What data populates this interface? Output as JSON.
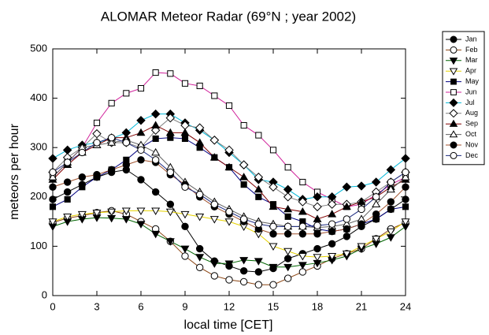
{
  "chart_data": {
    "type": "line",
    "title": "ALOMAR Meteor Radar (69°N ; year 2002)",
    "x_label": "local time [CET]",
    "y_label": "meteors per hour",
    "x": [
      0,
      1,
      2,
      3,
      4,
      5,
      6,
      7,
      8,
      9,
      10,
      11,
      12,
      13,
      14,
      15,
      16,
      17,
      18,
      19,
      20,
      21,
      22,
      23,
      24
    ],
    "xlim": [
      0,
      24
    ],
    "xticks": [
      0,
      3,
      6,
      9,
      12,
      15,
      18,
      21,
      24
    ],
    "ylim": [
      0,
      500
    ],
    "yticks": [
      0,
      100,
      200,
      300,
      400,
      500
    ],
    "marker_color": "#000000",
    "legend": "outside-top-right",
    "series": [
      {
        "name": "Jan",
        "color": "#000000",
        "marker": "circle",
        "filled": true,
        "values": [
          195,
          210,
          225,
          240,
          250,
          255,
          235,
          210,
          185,
          140,
          95,
          70,
          60,
          50,
          48,
          55,
          75,
          85,
          95,
          105,
          120,
          140,
          155,
          175,
          195
        ]
      },
      {
        "name": "Feb",
        "color": "#8b4513",
        "marker": "circle",
        "filled": false,
        "values": [
          148,
          157,
          162,
          168,
          172,
          165,
          150,
          135,
          110,
          80,
          57,
          40,
          32,
          28,
          22,
          22,
          35,
          48,
          60,
          75,
          85,
          95,
          115,
          135,
          148
        ]
      },
      {
        "name": "Mar",
        "color": "#006400",
        "marker": "triangle-down",
        "filled": true,
        "values": [
          140,
          150,
          155,
          158,
          157,
          155,
          145,
          125,
          110,
          95,
          78,
          65,
          65,
          72,
          70,
          58,
          58,
          62,
          66,
          72,
          80,
          95,
          105,
          118,
          140
        ]
      },
      {
        "name": "Apr",
        "color": "#e6d200",
        "marker": "triangle-down",
        "filled": false,
        "values": [
          150,
          160,
          165,
          168,
          170,
          172,
          172,
          172,
          170,
          165,
          160,
          155,
          150,
          140,
          125,
          100,
          90,
          80,
          78,
          80,
          85,
          100,
          115,
          130,
          150
        ]
      },
      {
        "name": "May",
        "color": "#000080",
        "marker": "square",
        "filled": true,
        "values": [
          180,
          195,
          220,
          240,
          255,
          275,
          300,
          318,
          320,
          318,
          300,
          280,
          260,
          225,
          200,
          185,
          160,
          150,
          135,
          130,
          135,
          145,
          155,
          175,
          180
        ]
      },
      {
        "name": "Jun",
        "color": "#d0209a",
        "marker": "square",
        "filled": false,
        "values": [
          240,
          270,
          300,
          350,
          390,
          410,
          420,
          452,
          450,
          430,
          425,
          405,
          385,
          345,
          325,
          295,
          260,
          230,
          210,
          195,
          180,
          185,
          205,
          225,
          240
        ]
      },
      {
        "name": "Jul",
        "color": "#00b8d8",
        "marker": "diamond",
        "filled": true,
        "values": [
          278,
          295,
          305,
          310,
          318,
          330,
          355,
          368,
          368,
          350,
          335,
          315,
          290,
          265,
          235,
          230,
          215,
          195,
          200,
          200,
          220,
          222,
          230,
          255,
          278
        ]
      },
      {
        "name": "Aug",
        "color": "#808080",
        "marker": "diamond",
        "filled": false,
        "values": [
          250,
          280,
          300,
          328,
          310,
          310,
          300,
          335,
          360,
          345,
          340,
          315,
          295,
          265,
          240,
          220,
          200,
          190,
          180,
          185,
          185,
          190,
          210,
          230,
          250
        ]
      },
      {
        "name": "Sep",
        "color": "#800000",
        "marker": "triangle-up",
        "filled": true,
        "values": [
          235,
          265,
          290,
          305,
          320,
          320,
          330,
          345,
          330,
          330,
          310,
          280,
          260,
          240,
          215,
          180,
          175,
          170,
          155,
          165,
          180,
          190,
          200,
          220,
          235
        ]
      },
      {
        "name": "Oct",
        "color": "#606060",
        "marker": "triangle-up",
        "filled": false,
        "values": [
          240,
          270,
          300,
          305,
          310,
          315,
          305,
          290,
          260,
          230,
          210,
          190,
          175,
          160,
          150,
          145,
          140,
          140,
          138,
          140,
          145,
          155,
          185,
          215,
          240
        ]
      },
      {
        "name": "Nov",
        "color": "#a0522d",
        "marker": "circle",
        "filled": true,
        "values": [
          220,
          230,
          240,
          245,
          255,
          265,
          275,
          270,
          245,
          225,
          200,
          180,
          165,
          150,
          135,
          125,
          125,
          125,
          125,
          130,
          135,
          145,
          165,
          190,
          220
        ]
      },
      {
        "name": "Dec",
        "color": "#1c2a80",
        "marker": "circle",
        "filled": false,
        "values": [
          250,
          270,
          290,
          310,
          320,
          310,
          295,
          275,
          250,
          220,
          205,
          185,
          170,
          155,
          145,
          140,
          140,
          140,
          142,
          145,
          155,
          175,
          200,
          230,
          250
        ]
      }
    ]
  }
}
